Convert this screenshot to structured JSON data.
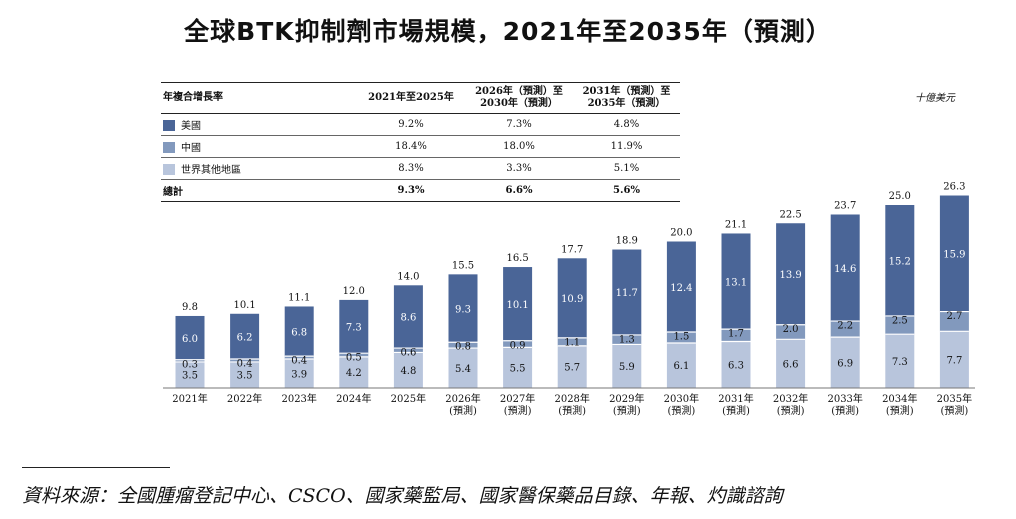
{
  "title": "全球BTK抑制劑市場規模，2021年至2035年（預測）",
  "unit": "十億美元",
  "source": "資料來源：全國腫瘤登記中心、CSCO、國家藥監局、國家醫保藥品目錄、年報、灼識諮詢",
  "colors": {
    "us": "#4a6597",
    "china": "#8299bd",
    "rest": "#b8c5dc"
  },
  "cagr_table": {
    "headers": [
      "年複合增長率",
      "2021年至2025年",
      "2026年（預測）至\n2030年（預測）",
      "2031年（預測）至\n2035年（預測）"
    ],
    "rows": [
      {
        "name": "美國",
        "color": "#4a6597",
        "values": [
          "9.2%",
          "7.3%",
          "4.8%"
        ]
      },
      {
        "name": "中國",
        "color": "#8299bd",
        "values": [
          "18.4%",
          "18.0%",
          "11.9%"
        ]
      },
      {
        "name": "世界其他地區",
        "color": "#b8c5dc",
        "values": [
          "8.3%",
          "3.3%",
          "5.1%"
        ]
      },
      {
        "name": "總計",
        "values": [
          "9.3%",
          "6.6%",
          "5.6%"
        ]
      }
    ]
  },
  "chart_data": {
    "type": "bar",
    "stacked": true,
    "categories": [
      "2021年",
      "2022年",
      "2023年",
      "2024年",
      "2025年",
      "2026年\n(預測)",
      "2027年\n(預測)",
      "2028年\n(預測)",
      "2029年\n(預測)",
      "2030年\n(預測)",
      "2031年\n(預測)",
      "2032年\n(預測)",
      "2033年\n(預測)",
      "2034年\n(預測)",
      "2035年\n(預測)"
    ],
    "series": [
      {
        "name": "世界其他地區",
        "values": [
          3.5,
          3.5,
          3.9,
          4.2,
          4.8,
          5.4,
          5.5,
          5.7,
          5.9,
          6.1,
          6.3,
          6.6,
          6.9,
          7.3,
          7.7
        ]
      },
      {
        "name": "中國",
        "values": [
          0.3,
          0.4,
          0.4,
          0.5,
          0.6,
          0.8,
          0.9,
          1.1,
          1.3,
          1.5,
          1.7,
          2.0,
          2.2,
          2.5,
          2.7
        ]
      },
      {
        "name": "美國",
        "values": [
          6.0,
          6.2,
          6.8,
          7.3,
          8.6,
          9.3,
          10.1,
          10.9,
          11.7,
          12.4,
          13.1,
          13.9,
          14.6,
          15.2,
          15.9
        ]
      }
    ],
    "ylabel": "",
    "xlabel": "",
    "grid": false
  }
}
